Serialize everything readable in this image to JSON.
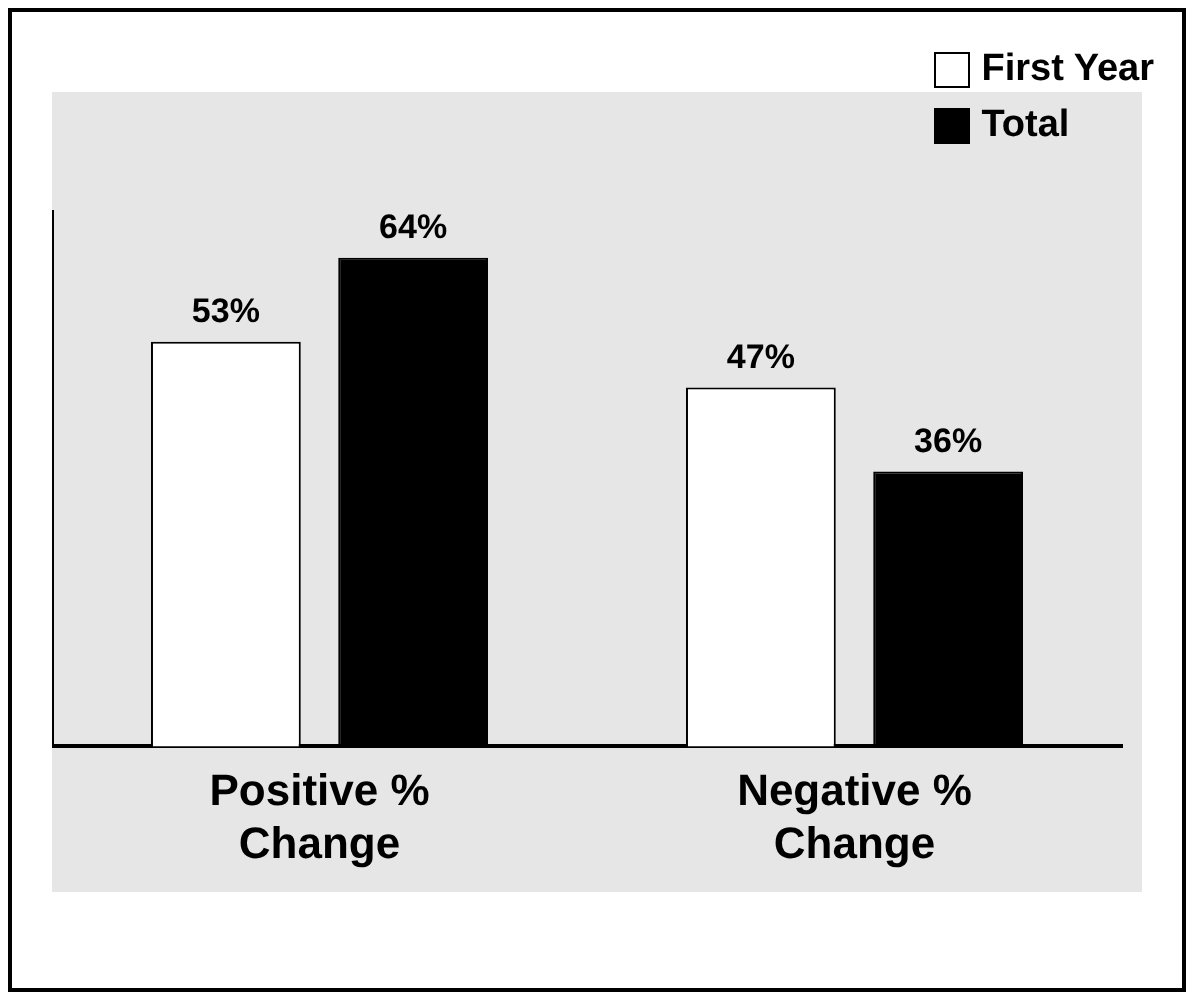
{
  "chart_data": {
    "type": "bar",
    "categories": [
      "Positive %\nChange",
      "Negative %\nChange"
    ],
    "series": [
      {
        "name": "First Year",
        "color": "#ffffff",
        "values": [
          53,
          47
        ],
        "value_labels": [
          "53%",
          "47%"
        ]
      },
      {
        "name": "Total",
        "color": "#000000",
        "values": [
          64,
          36
        ],
        "value_labels": [
          "64%",
          "36%"
        ]
      }
    ],
    "legend": "top right",
    "grid": false,
    "tick_labels": "x"
  }
}
